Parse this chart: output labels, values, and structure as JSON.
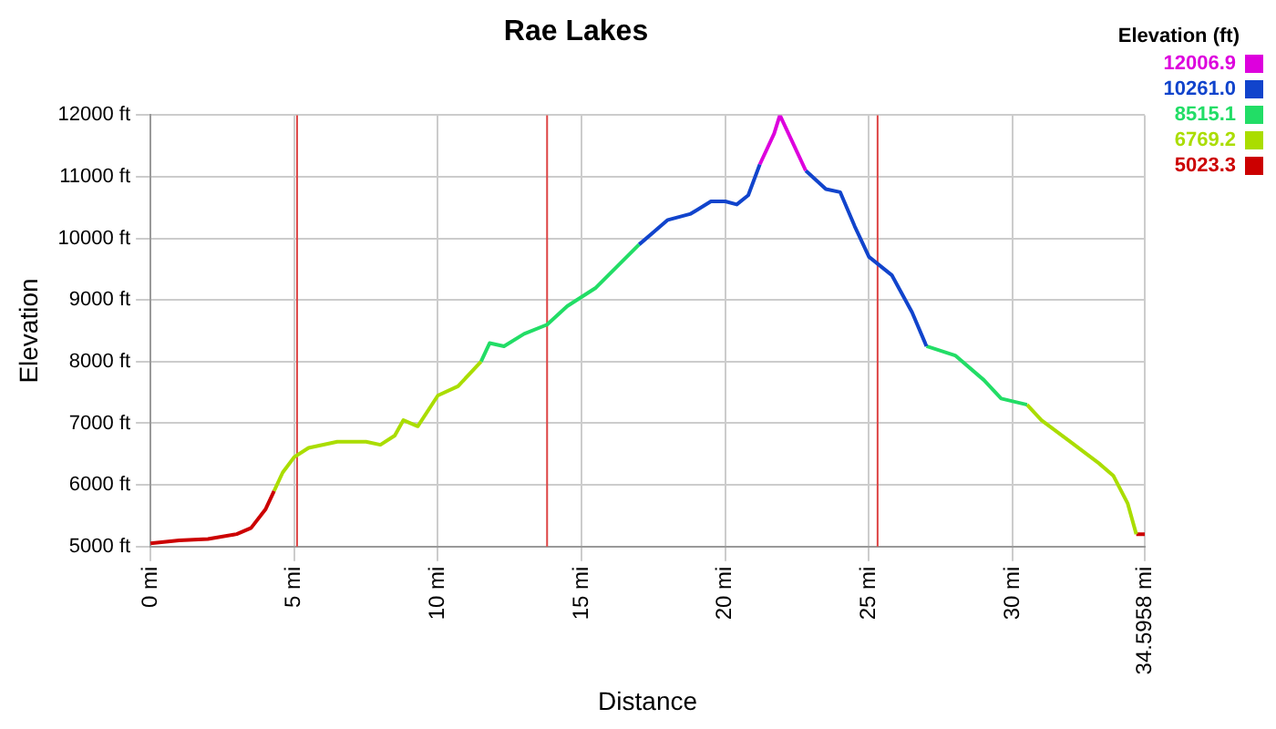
{
  "chart_data": {
    "type": "line",
    "title": "Rae Lakes",
    "xlabel": "Distance",
    "ylabel": "Elevation",
    "clabel": "Elevation (ft)",
    "clim": [
      5023.3,
      12006.9
    ],
    "cticks": [
      {
        "value": 12006.9,
        "label": "12006.9"
      },
      {
        "value": 10261.0,
        "label": "10261.0"
      },
      {
        "value": 8515.1,
        "label": "8515.1"
      },
      {
        "value": 6769.2,
        "label": "6769.2"
      },
      {
        "value": 5023.3,
        "label": "5023.3"
      }
    ],
    "series": [
      {
        "color": "#cc0000",
        "x": [
          0,
          1,
          2,
          3,
          3.5,
          4,
          4.3
        ],
        "values": [
          5050,
          5100,
          5120,
          5200,
          5300,
          5600,
          5900
        ]
      },
      {
        "color": "#aadd00",
        "x": [
          4.3,
          4.6,
          5,
          5.5,
          6.5,
          7.5,
          8,
          8.5,
          8.8,
          9.3,
          10,
          10.7,
          11.5
        ],
        "values": [
          5900,
          6200,
          6450,
          6600,
          6700,
          6700,
          6650,
          6800,
          7050,
          6950,
          7450,
          7600,
          8000
        ]
      },
      {
        "color": "#22dd66",
        "x": [
          11.5,
          11.8,
          12.3,
          13,
          13.8,
          14.5,
          15.5,
          17
        ],
        "values": [
          8000,
          8300,
          8250,
          8450,
          8600,
          8900,
          9200,
          9900
        ]
      },
      {
        "color": "#1144cc",
        "x": [
          17,
          18,
          18.8,
          19.5,
          20,
          20.4,
          20.8,
          21.2
        ],
        "values": [
          9900,
          10300,
          10400,
          10600,
          10600,
          10550,
          10700,
          11200
        ]
      },
      {
        "color": "#dd00dd",
        "x": [
          21.2,
          21.7,
          21.9,
          22.3,
          22.8
        ],
        "values": [
          11200,
          11700,
          12000,
          11600,
          11100
        ]
      },
      {
        "color": "#1144cc",
        "x": [
          22.8,
          23.5,
          24,
          24.5,
          25,
          25.8,
          26.5,
          27
        ],
        "values": [
          11100,
          10800,
          10750,
          10200,
          9700,
          9400,
          8800,
          8250
        ]
      },
      {
        "color": "#22dd66",
        "x": [
          27,
          28,
          29,
          29.6,
          30.5
        ],
        "values": [
          8250,
          8100,
          7700,
          7400,
          7300
        ]
      },
      {
        "color": "#aadd00",
        "x": [
          30.5,
          31,
          32,
          33,
          33.5,
          34,
          34.3
        ],
        "values": [
          7300,
          7050,
          6700,
          6350,
          6150,
          5700,
          5200
        ]
      },
      {
        "color": "#cc0000",
        "x": [
          34.3,
          34.5958
        ],
        "values": [
          5200,
          5200
        ]
      }
    ],
    "xlim": [
      0,
      34.5958
    ],
    "xticks": [
      {
        "value": 0,
        "label": "0 mi"
      },
      {
        "value": 5,
        "label": "5 mi"
      },
      {
        "value": 10,
        "label": "10 mi"
      },
      {
        "value": 15,
        "label": "15 mi"
      },
      {
        "value": 20,
        "label": "20 mi"
      },
      {
        "value": 25,
        "label": "25 mi"
      },
      {
        "value": 30,
        "label": "30 mi"
      },
      {
        "value": 34.5958,
        "label": "34.5958 mi"
      }
    ],
    "ylim": [
      5000,
      12000
    ],
    "yticks": [
      {
        "value": 5000,
        "label": "5000 ft"
      },
      {
        "value": 6000,
        "label": "6000 ft"
      },
      {
        "value": 7000,
        "label": "7000 ft"
      },
      {
        "value": 8000,
        "label": "8000 ft"
      },
      {
        "value": 9000,
        "label": "9000 ft"
      },
      {
        "value": 10000,
        "label": "10000 ft"
      },
      {
        "value": 11000,
        "label": "11000 ft"
      },
      {
        "value": 12000,
        "label": "12000 ft"
      }
    ],
    "ref_lines": [
      {
        "axis": "x",
        "value": 5.1,
        "color": "#dd4444"
      },
      {
        "axis": "x",
        "value": 13.8,
        "color": "#dd4444"
      },
      {
        "axis": "x",
        "value": 25.3,
        "color": "#dd4444"
      }
    ],
    "grid": true,
    "legend": false,
    "marker": "none",
    "line_style": "solid"
  }
}
